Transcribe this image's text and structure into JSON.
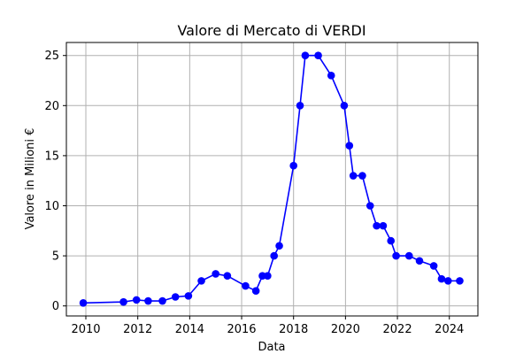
{
  "chart_data": {
    "type": "line",
    "title": "Valore di Mercato di VERDI",
    "xlabel": "Data",
    "ylabel": "Valore in Milioni €",
    "xlim": [
      2009.25,
      2025.1
    ],
    "ylim": [
      -1.0,
      26.3
    ],
    "x_ticks": [
      2010,
      2012,
      2014,
      2016,
      2018,
      2020,
      2022,
      2024
    ],
    "x_tick_labels": [
      "2010",
      "2012",
      "2014",
      "2016",
      "2018",
      "2020",
      "2022",
      "2024"
    ],
    "y_ticks": [
      0,
      5,
      10,
      15,
      20,
      25
    ],
    "y_tick_labels": [
      "0",
      "5",
      "10",
      "15",
      "20",
      "25"
    ],
    "grid": true,
    "color": "#0000ff",
    "marker": "circle",
    "x": [
      2009.9,
      2011.45,
      2011.95,
      2012.4,
      2012.95,
      2013.45,
      2013.95,
      2014.45,
      2015.0,
      2015.45,
      2016.15,
      2016.55,
      2016.8,
      2017.0,
      2017.25,
      2017.45,
      2018.0,
      2018.25,
      2018.45,
      2018.95,
      2019.45,
      2019.95,
      2020.15,
      2020.3,
      2020.65,
      2020.95,
      2021.2,
      2021.45,
      2021.75,
      2021.95,
      2022.45,
      2022.85,
      2023.4,
      2023.7,
      2023.95,
      2024.4
    ],
    "y": [
      0.3,
      0.4,
      0.6,
      0.5,
      0.5,
      0.9,
      1.0,
      2.5,
      3.2,
      3.0,
      2.0,
      1.5,
      3.0,
      3.0,
      5.0,
      6.0,
      14.0,
      20.0,
      25.0,
      25.0,
      23.0,
      20.0,
      16.0,
      13.0,
      13.0,
      10.0,
      8.0,
      8.0,
      6.5,
      5.0,
      5.0,
      4.5,
      4.0,
      2.7,
      2.5,
      2.5
    ]
  }
}
